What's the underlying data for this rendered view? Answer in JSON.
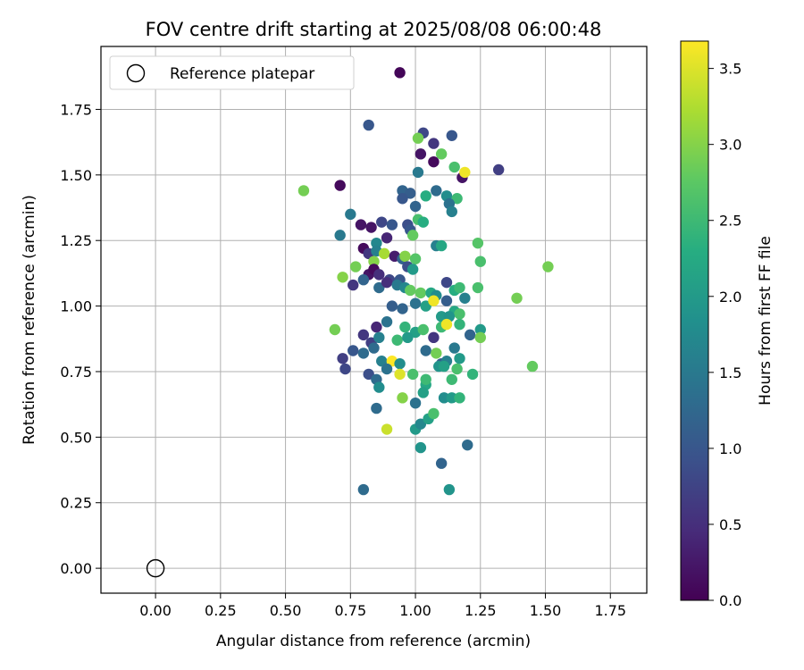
{
  "chart_data": {
    "type": "scatter",
    "title": "FOV centre drift starting at 2025/08/08 06:00:48",
    "xlabel": "Angular distance from reference (arcmin)",
    "ylabel": "Rotation from reference (arcmin)",
    "xlim": [
      -0.21,
      1.89
    ],
    "ylim": [
      -0.095,
      1.99
    ],
    "xticks": [
      0.0,
      0.25,
      0.5,
      0.75,
      1.0,
      1.25,
      1.5,
      1.75
    ],
    "xtick_labels": [
      "0.00",
      "0.25",
      "0.50",
      "0.75",
      "1.00",
      "1.25",
      "1.50",
      "1.75"
    ],
    "yticks": [
      0.0,
      0.25,
      0.5,
      0.75,
      1.0,
      1.25,
      1.5,
      1.75
    ],
    "ytick_labels": [
      "0.00",
      "0.25",
      "0.50",
      "0.75",
      "1.00",
      "1.25",
      "1.50",
      "1.75"
    ],
    "grid": true,
    "legend": {
      "placement": "top-left",
      "entries": [
        "Reference platepar"
      ]
    },
    "reference_point": {
      "x": 0.0,
      "y": 0.0
    },
    "colorbar": {
      "label": "Hours from first FF file",
      "range": [
        0.0,
        3.68
      ],
      "ticks": [
        0.0,
        0.5,
        1.0,
        1.5,
        2.0,
        2.5,
        3.0,
        3.5
      ],
      "tick_labels": [
        "0.0",
        "0.5",
        "1.0",
        "1.5",
        "2.0",
        "2.5",
        "3.0",
        "3.5"
      ],
      "colormap": "viridis"
    },
    "points": [
      [
        0.94,
        1.89,
        0.05
      ],
      [
        0.82,
        1.69,
        1.0
      ],
      [
        1.03,
        1.66,
        0.8
      ],
      [
        1.14,
        1.65,
        1.0
      ],
      [
        1.07,
        1.62,
        0.6
      ],
      [
        1.01,
        1.64,
        2.9
      ],
      [
        1.02,
        1.58,
        0.2
      ],
      [
        1.1,
        1.58,
        2.8
      ],
      [
        1.07,
        1.55,
        0.1
      ],
      [
        1.32,
        1.52,
        0.7
      ],
      [
        1.15,
        1.53,
        2.6
      ],
      [
        1.18,
        1.49,
        0.2
      ],
      [
        1.19,
        1.51,
        3.6
      ],
      [
        1.01,
        1.51,
        1.5
      ],
      [
        0.71,
        1.46,
        0.1
      ],
      [
        0.57,
        1.44,
        2.9
      ],
      [
        0.95,
        1.44,
        1.2
      ],
      [
        0.98,
        1.43,
        1.1
      ],
      [
        1.08,
        1.44,
        1.3
      ],
      [
        1.12,
        1.42,
        1.8
      ],
      [
        1.16,
        1.41,
        2.5
      ],
      [
        0.95,
        1.41,
        1.0
      ],
      [
        1.13,
        1.39,
        1.4
      ],
      [
        1.04,
        1.42,
        2.3
      ],
      [
        1.0,
        1.38,
        1.2
      ],
      [
        1.14,
        1.36,
        1.6
      ],
      [
        0.75,
        1.35,
        1.5
      ],
      [
        0.79,
        1.31,
        0.2
      ],
      [
        0.83,
        1.3,
        0.2
      ],
      [
        0.87,
        1.32,
        0.8
      ],
      [
        0.91,
        1.31,
        1.0
      ],
      [
        0.97,
        1.31,
        0.9
      ],
      [
        1.01,
        1.33,
        2.6
      ],
      [
        1.03,
        1.32,
        2.3
      ],
      [
        0.98,
        1.29,
        1.0
      ],
      [
        0.71,
        1.27,
        1.5
      ],
      [
        0.89,
        1.26,
        0.4
      ],
      [
        0.85,
        1.24,
        1.7
      ],
      [
        0.99,
        1.27,
        2.8
      ],
      [
        1.08,
        1.23,
        1.6
      ],
      [
        1.1,
        1.23,
        2.2
      ],
      [
        1.24,
        1.24,
        2.7
      ],
      [
        0.8,
        1.22,
        0.1
      ],
      [
        0.82,
        1.2,
        0.6
      ],
      [
        0.85,
        1.21,
        1.6
      ],
      [
        0.88,
        1.2,
        3.2
      ],
      [
        0.92,
        1.19,
        0.3
      ],
      [
        0.95,
        1.18,
        1.2
      ],
      [
        0.96,
        1.19,
        3.0
      ],
      [
        1.0,
        1.18,
        2.7
      ],
      [
        0.84,
        1.17,
        3.0
      ],
      [
        0.77,
        1.15,
        2.9
      ],
      [
        0.82,
        1.12,
        0.2
      ],
      [
        0.84,
        1.14,
        0.1
      ],
      [
        0.86,
        1.12,
        0.5
      ],
      [
        0.9,
        1.1,
        0.8
      ],
      [
        0.94,
        1.1,
        1.0
      ],
      [
        0.97,
        1.15,
        0.9
      ],
      [
        0.99,
        1.14,
        2.0
      ],
      [
        1.25,
        1.17,
        2.6
      ],
      [
        1.51,
        1.15,
        2.9
      ],
      [
        0.72,
        1.11,
        3.0
      ],
      [
        0.76,
        1.08,
        0.6
      ],
      [
        0.8,
        1.1,
        1.2
      ],
      [
        0.86,
        1.07,
        1.3
      ],
      [
        0.89,
        1.09,
        0.5
      ],
      [
        0.93,
        1.08,
        1.5
      ],
      [
        0.96,
        1.07,
        1.7
      ],
      [
        0.98,
        1.06,
        2.8
      ],
      [
        1.02,
        1.05,
        2.8
      ],
      [
        1.06,
        1.05,
        2.2
      ],
      [
        1.08,
        1.04,
        1.8
      ],
      [
        1.12,
        1.09,
        0.8
      ],
      [
        1.15,
        1.06,
        2.3
      ],
      [
        1.17,
        1.07,
        2.5
      ],
      [
        1.19,
        1.03,
        1.6
      ],
      [
        1.24,
        1.07,
        2.6
      ],
      [
        1.39,
        1.03,
        2.9
      ],
      [
        0.91,
        1.0,
        1.1
      ],
      [
        0.95,
        0.99,
        1.2
      ],
      [
        1.0,
        1.01,
        1.4
      ],
      [
        1.04,
        1.0,
        2.1
      ],
      [
        1.07,
        1.02,
        3.6
      ],
      [
        1.12,
        1.02,
        1.1
      ],
      [
        1.15,
        0.98,
        2.2
      ],
      [
        1.17,
        0.97,
        2.6
      ],
      [
        1.1,
        0.96,
        2.0
      ],
      [
        1.13,
        0.96,
        1.9
      ],
      [
        0.69,
        0.91,
        2.9
      ],
      [
        0.85,
        0.92,
        0.4
      ],
      [
        0.89,
        0.94,
        1.4
      ],
      [
        0.96,
        0.92,
        2.4
      ],
      [
        1.0,
        0.9,
        2.1
      ],
      [
        1.03,
        0.91,
        2.6
      ],
      [
        1.07,
        0.88,
        0.6
      ],
      [
        1.1,
        0.92,
        2.5
      ],
      [
        1.12,
        0.93,
        3.6
      ],
      [
        1.17,
        0.93,
        2.4
      ],
      [
        1.21,
        0.89,
        1.2
      ],
      [
        1.25,
        0.91,
        2.0
      ],
      [
        1.25,
        0.88,
        2.9
      ],
      [
        0.8,
        0.89,
        0.6
      ],
      [
        0.83,
        0.86,
        0.7
      ],
      [
        0.86,
        0.88,
        1.6
      ],
      [
        0.93,
        0.87,
        2.5
      ],
      [
        0.97,
        0.88,
        2.0
      ],
      [
        0.76,
        0.83,
        1.0
      ],
      [
        0.8,
        0.82,
        1.3
      ],
      [
        0.84,
        0.84,
        1.3
      ],
      [
        0.72,
        0.8,
        0.7
      ],
      [
        0.73,
        0.76,
        0.8
      ],
      [
        0.87,
        0.79,
        1.6
      ],
      [
        0.91,
        0.79,
        3.7
      ],
      [
        0.94,
        0.78,
        1.8
      ],
      [
        1.04,
        0.83,
        1.3
      ],
      [
        1.08,
        0.82,
        2.9
      ],
      [
        1.1,
        0.78,
        1.1
      ],
      [
        1.12,
        0.79,
        1.6
      ],
      [
        1.15,
        0.84,
        1.5
      ],
      [
        1.17,
        0.8,
        2.0
      ],
      [
        0.82,
        0.74,
        0.9
      ],
      [
        0.85,
        0.72,
        1.3
      ],
      [
        0.86,
        0.69,
        1.8
      ],
      [
        0.89,
        0.76,
        1.4
      ],
      [
        0.94,
        0.74,
        3.5
      ],
      [
        0.99,
        0.74,
        2.6
      ],
      [
        1.04,
        0.7,
        2.2
      ],
      [
        1.04,
        0.72,
        2.5
      ],
      [
        1.09,
        0.77,
        1.9
      ],
      [
        1.11,
        0.77,
        2.1
      ],
      [
        1.14,
        0.72,
        2.5
      ],
      [
        1.16,
        0.76,
        2.6
      ],
      [
        1.22,
        0.74,
        2.4
      ],
      [
        1.45,
        0.77,
        2.8
      ],
      [
        0.85,
        0.61,
        1.3
      ],
      [
        0.95,
        0.65,
        3.0
      ],
      [
        1.0,
        0.63,
        1.4
      ],
      [
        1.03,
        0.67,
        2.1
      ],
      [
        1.11,
        0.65,
        1.8
      ],
      [
        1.14,
        0.65,
        2.0
      ],
      [
        1.17,
        0.65,
        2.4
      ],
      [
        0.89,
        0.53,
        3.4
      ],
      [
        1.0,
        0.53,
        2.0
      ],
      [
        1.02,
        0.55,
        1.7
      ],
      [
        1.05,
        0.57,
        2.1
      ],
      [
        1.07,
        0.59,
        2.6
      ],
      [
        1.02,
        0.46,
        1.9
      ],
      [
        1.1,
        0.4,
        1.2
      ],
      [
        1.2,
        0.47,
        1.3
      ],
      [
        0.8,
        0.3,
        1.3
      ],
      [
        1.13,
        0.3,
        1.9
      ]
    ]
  }
}
